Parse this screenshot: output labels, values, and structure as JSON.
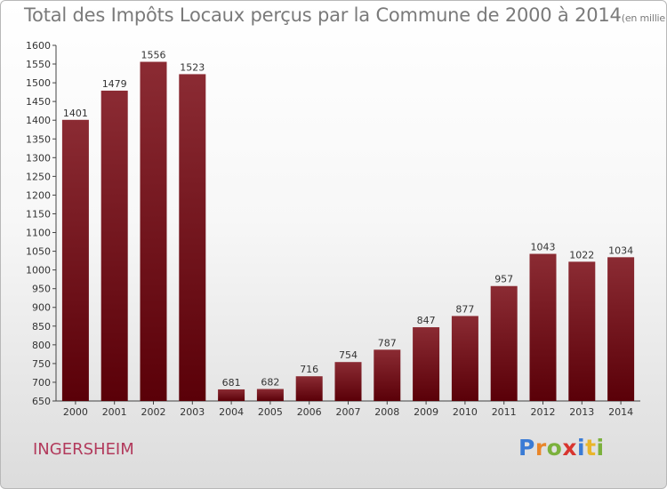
{
  "title": "Total des Impôts Locaux perçus par la Commune de 2000 à 2014",
  "unit": "(en milliers d'€)",
  "commune": "INGERSHEIM",
  "logo": {
    "p": "P",
    "r": "r",
    "o": "o",
    "x": "x",
    "i": "i",
    "t": "t",
    "i2": "i"
  },
  "colors": {
    "bar_top": "#8b2b33",
    "bar_bottom": "#5a0008",
    "commune": "#b23a5c"
  },
  "chart_data": {
    "type": "bar",
    "categories": [
      "2000",
      "2001",
      "2002",
      "2003",
      "2004",
      "2005",
      "2006",
      "2007",
      "2008",
      "2009",
      "2010",
      "2011",
      "2012",
      "2013",
      "2014"
    ],
    "values": [
      1401,
      1479,
      1556,
      1523,
      681,
      682,
      716,
      754,
      787,
      847,
      877,
      957,
      1043,
      1022,
      1034
    ],
    "ylim": [
      650,
      1600
    ],
    "yticks": [
      650,
      700,
      750,
      800,
      850,
      900,
      950,
      1000,
      1050,
      1100,
      1150,
      1200,
      1250,
      1300,
      1350,
      1400,
      1450,
      1500,
      1550,
      1600
    ],
    "grid": false
  }
}
